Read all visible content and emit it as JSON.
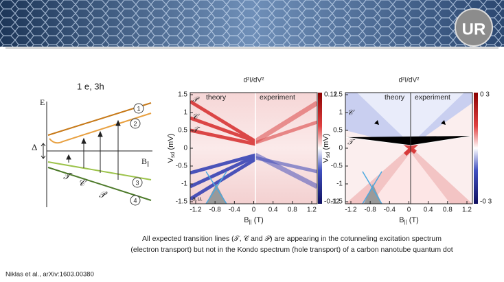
{
  "header": {
    "logo": "UR"
  },
  "diagram": {
    "title": "1 e, 3h",
    "energy_axis": "E",
    "field_axis": {
      "main": "B",
      "sub": "||"
    },
    "gap": "Δ",
    "levels": [
      "1",
      "2",
      "3",
      "4"
    ],
    "transitions": [
      "𝒯",
      "𝒞",
      "𝒫"
    ]
  },
  "plots": [
    {
      "title": "d²I/dV²",
      "ylabel": {
        "main": "V",
        "sub": "sd",
        "unit": " (mV)"
      },
      "xlabel": {
        "main": "B",
        "sub": "||",
        "unit": " (T)"
      },
      "yticks": [
        "1.5",
        "1",
        "0.5",
        "0",
        "-0.5",
        "-1",
        "-1.5"
      ],
      "xticks": [
        "-1.2",
        "-0.8",
        "-0.4",
        "0",
        "0.4",
        "0.8",
        "1.2"
      ],
      "colorbar": [
        "0.12",
        "-0.12"
      ],
      "panels": [
        "theory",
        "experiment"
      ],
      "note": "a.u.",
      "lines": [
        "𝒫",
        "𝒞",
        "𝒯"
      ]
    },
    {
      "title": "d²I/dV²",
      "ylabel": {
        "main": "V",
        "sub": "sd",
        "unit": " (mV)"
      },
      "xlabel": {
        "main": "B",
        "sub": "||",
        "unit": " (T)"
      },
      "yticks": [
        "1.5",
        "1",
        "0.5",
        "0",
        "-0.5",
        "-1",
        "-1.5"
      ],
      "xticks": [
        "-1.2",
        "-0.8",
        "-0.4",
        "0",
        "0.4",
        "0.8",
        "1.2"
      ],
      "colorbar": [
        "0 3",
        "-0 3"
      ],
      "panels": [
        "theory",
        "experiment"
      ],
      "lines": [
        "𝒞",
        "𝒯"
      ]
    }
  ],
  "caption": [
    "All expected transition lines (𝒯, 𝒞 and 𝒫) are appearing in the cotunneling excitation spectrum",
    "(electron transport) but not in the Kondo spectrum (hole transport) of a carbon nanotube quantum dot"
  ],
  "citation": "Niklas et al., arXiv:1603.00380"
}
